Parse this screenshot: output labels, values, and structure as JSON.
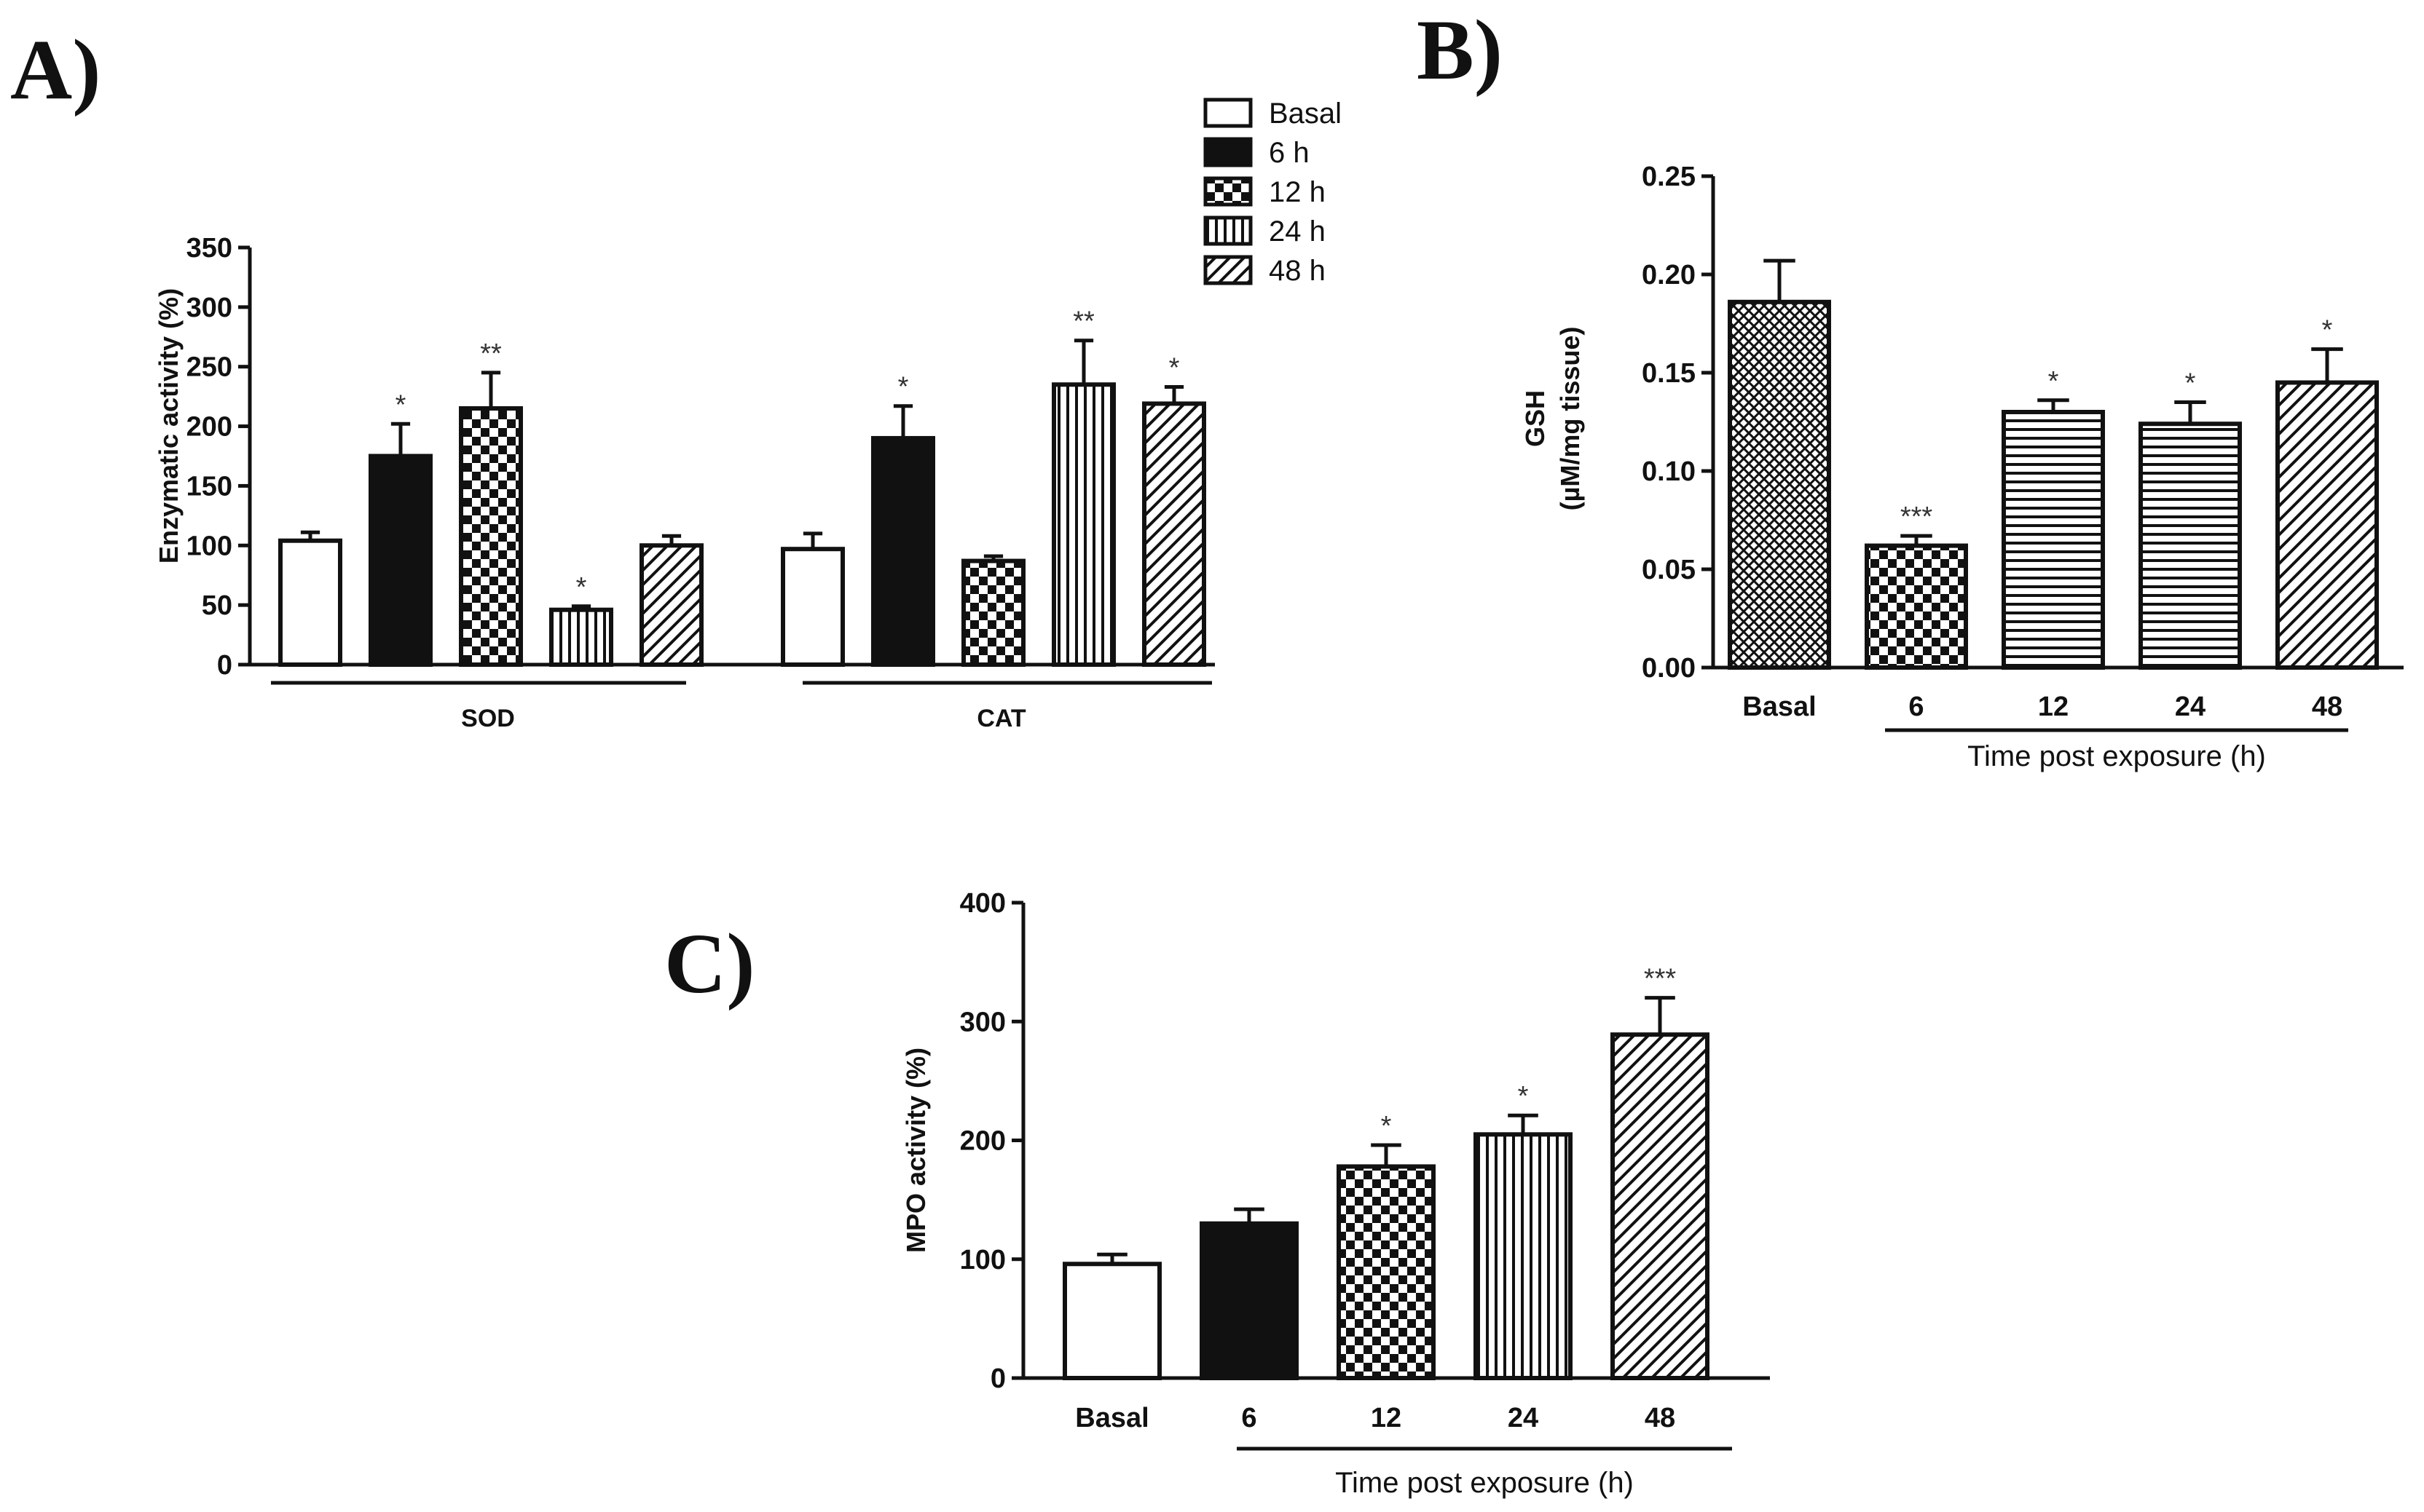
{
  "chart_data": [
    {
      "panel": "A)",
      "type": "bar",
      "ylabel": "Enzymatic activity (%)",
      "ylim": [
        0,
        350
      ],
      "yticks": [
        "0",
        "50",
        "100",
        "150",
        "200",
        "250",
        "300",
        "350"
      ],
      "groups": [
        "SOD",
        "CAT"
      ],
      "legend": [
        {
          "label": "Basal",
          "pattern": "white"
        },
        {
          "label": "6 h",
          "pattern": "black"
        },
        {
          "label": "12 h",
          "pattern": "checker"
        },
        {
          "label": "24 h",
          "pattern": "vertical"
        },
        {
          "label": "48 h",
          "pattern": "diagonal"
        }
      ],
      "series": [
        {
          "name": "Basal",
          "pattern": "white",
          "values": [
            104,
            97
          ],
          "errors": [
            7,
            13
          ],
          "sig": [
            "",
            ""
          ]
        },
        {
          "name": "6 h",
          "pattern": "black",
          "values": [
            175,
            190
          ],
          "errors": [
            27,
            27
          ],
          "sig": [
            "*",
            "*"
          ]
        },
        {
          "name": "12 h",
          "pattern": "checker",
          "values": [
            215,
            87
          ],
          "errors": [
            30,
            4
          ],
          "sig": [
            "**",
            ""
          ]
        },
        {
          "name": "24 h",
          "pattern": "vertical",
          "values": [
            46,
            235
          ],
          "errors": [
            3,
            37
          ],
          "sig": [
            "*",
            "**"
          ]
        },
        {
          "name": "48 h",
          "pattern": "diagonal",
          "values": [
            100,
            219
          ],
          "errors": [
            8,
            14
          ],
          "sig": [
            "",
            "*"
          ]
        }
      ]
    },
    {
      "panel": "B)",
      "type": "bar",
      "ylabel_line1": "GSH",
      "ylabel_line2": "(µM/mg tissue)",
      "ylim": [
        0,
        0.25
      ],
      "yticks": [
        "0.00",
        "0.05",
        "0.10",
        "0.15",
        "0.20",
        "0.25"
      ],
      "categories": [
        "Basal",
        "6",
        "12",
        "24",
        "48"
      ],
      "xlabel": "Time post exposure (h)",
      "patterns": [
        "crosshatch",
        "checker",
        "horizontal",
        "horizontal",
        "diagonal"
      ],
      "values": [
        0.186,
        0.062,
        0.13,
        0.124,
        0.145
      ],
      "errors": [
        0.021,
        0.005,
        0.006,
        0.011,
        0.017
      ],
      "sig": [
        "",
        "***",
        "*",
        "*",
        "*"
      ]
    },
    {
      "panel": "C)",
      "type": "bar",
      "ylabel": "MPO activity (%)",
      "ylim": [
        0,
        400
      ],
      "yticks": [
        "0",
        "100",
        "200",
        "300",
        "400"
      ],
      "categories": [
        "Basal",
        "6",
        "12",
        "24",
        "48"
      ],
      "xlabel": "Time post exposure (h)",
      "patterns": [
        "white",
        "black",
        "checker",
        "vertical",
        "diagonal"
      ],
      "values": [
        96,
        130,
        178,
        205,
        289
      ],
      "errors": [
        8,
        12,
        18,
        16,
        31
      ],
      "sig": [
        "",
        "",
        "*",
        "*",
        "***"
      ]
    }
  ]
}
